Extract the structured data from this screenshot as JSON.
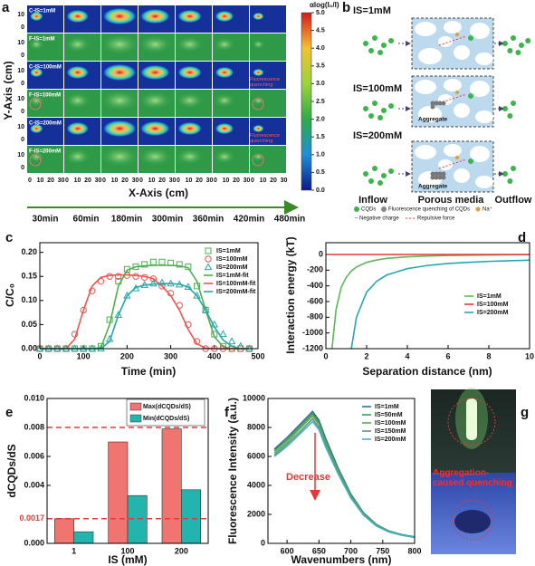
{
  "panel_a": {
    "panel_label": "a",
    "rows": [
      "C-IS=1mM",
      "F-IS=1mM",
      "C-IS=100mM",
      "F-IS=100mM",
      "C-IS=200mM",
      "F-IS=200mM"
    ],
    "y_tick_labels": [
      "10",
      "0"
    ],
    "x_tick_labels": [
      "0",
      "10",
      "20",
      "30"
    ],
    "y_label": "Y-Axis (cm)",
    "x_label": "X-Axis (cm)",
    "times": [
      "30min",
      "60min",
      "180min",
      "300min",
      "360min",
      "420min",
      "480min"
    ],
    "annotations": [
      "Fluorescence quenching",
      "Fluorescence quenching"
    ],
    "colorbar": {
      "label": "αlog(I₀/I)",
      "lim": [
        0,
        5
      ],
      "ticks": [
        {
          "value": 0,
          "label": "0.0"
        },
        0.5,
        {
          "value": 1,
          "label": "1.0"
        },
        1.5,
        {
          "value": 2,
          "label": "2.0"
        },
        2.5,
        {
          "value": 3,
          "label": "3.0"
        },
        3.5,
        {
          "value": 4,
          "label": "4.0"
        },
        4.5,
        {
          "value": 5,
          "label": "5.0"
        }
      ]
    }
  },
  "panel_b": {
    "panel_label": "b",
    "rows": [
      "IS=1mM",
      "IS=100mM",
      "IS=200mM"
    ],
    "aggregate_labels": [
      "Aggregate",
      "Aggregate"
    ],
    "stages": [
      "Inflow",
      "Porous media",
      "Outflow"
    ],
    "legend": [
      "CQDs",
      "Fluorescence quenching of CQDs",
      "Na⁺",
      "– Negative charge",
      "Repulsive force"
    ]
  },
  "panel_g": {
    "panel_label": "g",
    "caption": "Aggregation-caused quenching"
  },
  "chart_data": [
    {
      "panel_label": "c",
      "type": "line",
      "x_label": "Time (min)",
      "y_label": "C/C₀",
      "x": [
        0,
        20,
        40,
        60,
        80,
        100,
        120,
        140,
        160,
        180,
        200,
        220,
        240,
        260,
        280,
        300,
        320,
        340,
        360,
        380,
        400,
        420,
        440,
        460,
        480
      ],
      "series": [
        {
          "name": "IS=1mM",
          "color": "#4caf50",
          "marker": "square",
          "values": [
            0,
            0,
            0,
            0,
            0,
            0,
            0,
            0.005,
            0.06,
            0.14,
            0.165,
            0.17,
            0.175,
            0.18,
            0.18,
            0.178,
            0.175,
            0.17,
            0.13,
            0.08,
            0.03,
            0.005,
            0,
            0,
            0
          ]
        },
        {
          "name": "IS=100mM",
          "color": "#e8554e",
          "marker": "circle",
          "values": [
            0,
            0,
            0,
            0,
            0.03,
            0.08,
            0.12,
            0.14,
            0.15,
            0.15,
            0.152,
            0.15,
            0.148,
            0.145,
            0.13,
            0.115,
            0.09,
            0.05,
            0.015,
            0,
            0,
            0,
            0,
            0,
            0
          ]
        },
        {
          "name": "IS=200mM",
          "color": "#26a6a6",
          "marker": "triangle",
          "values": [
            0,
            0,
            0,
            0,
            0,
            0,
            0,
            0,
            0.02,
            0.07,
            0.11,
            0.125,
            0.132,
            0.135,
            0.137,
            0.135,
            0.133,
            0.128,
            0.11,
            0.08,
            0.05,
            0.03,
            0.015,
            0.005,
            0
          ]
        },
        {
          "name": "IS=1mM-fit",
          "color": "#4caf50",
          "values": [
            0,
            0,
            0,
            0,
            0,
            0,
            0,
            0.002,
            0.05,
            0.13,
            0.163,
            0.17,
            0.172,
            0.173,
            0.173,
            0.173,
            0.172,
            0.168,
            0.14,
            0.08,
            0.025,
            0.004,
            0,
            0,
            0
          ]
        },
        {
          "name": "IS=100mM-fit",
          "color": "#e8554e",
          "values": [
            0,
            0,
            0,
            0,
            0.02,
            0.08,
            0.13,
            0.148,
            0.152,
            0.153,
            0.153,
            0.152,
            0.15,
            0.145,
            0.13,
            0.11,
            0.08,
            0.04,
            0.01,
            0.001,
            0,
            0,
            0,
            0,
            0
          ]
        },
        {
          "name": "IS=200mM-fit",
          "color": "#26a6a6",
          "values": [
            0,
            0,
            0,
            0,
            0,
            0,
            0,
            0,
            0.015,
            0.07,
            0.11,
            0.127,
            0.132,
            0.134,
            0.135,
            0.135,
            0.134,
            0.128,
            0.11,
            0.08,
            0.045,
            0.018,
            0.005,
            0,
            0
          ]
        }
      ],
      "xlim": [
        0,
        500
      ],
      "xticks": [
        0,
        100,
        200,
        300,
        400,
        500
      ],
      "ylim": [
        0,
        0.22
      ],
      "yticks": [
        {
          "value": 0,
          "label": "0.00"
        },
        0.05,
        {
          "value": 0.1,
          "label": "0.10"
        },
        0.15,
        {
          "value": 0.2,
          "label": "0.20"
        }
      ],
      "legend": "upper right"
    },
    {
      "panel_label": "d",
      "type": "line",
      "x_label": "Separation distance (nm)",
      "y_label": "Interaction energy (kT)",
      "x": [
        0,
        0.3,
        0.5,
        0.75,
        1,
        1.25,
        1.5,
        2,
        2.5,
        3,
        4,
        5,
        6,
        7,
        8,
        9,
        10
      ],
      "series": [
        {
          "name": "IS=1mM",
          "color": "#5cb85c",
          "values": [
            null,
            -1200,
            -700,
            -420,
            -290,
            -210,
            -160,
            -100,
            -70,
            -50,
            -30,
            -20,
            -13,
            -9,
            -6,
            -4,
            -3
          ]
        },
        {
          "name": "IS=100mM",
          "color": "#e53935",
          "values": [
            0,
            0,
            0,
            0,
            0,
            0,
            0,
            0,
            0,
            0,
            0,
            0,
            0,
            0,
            0,
            0,
            0
          ]
        },
        {
          "name": "IS=200mM",
          "color": "#26a6b0",
          "values": [
            null,
            null,
            null,
            null,
            null,
            -1200,
            -800,
            -480,
            -340,
            -260,
            -180,
            -140,
            -115,
            -100,
            -88,
            -80,
            -72
          ]
        }
      ],
      "xlim": [
        0,
        10
      ],
      "xticks": [
        0,
        2,
        4,
        6,
        8,
        10
      ],
      "ylim": [
        -1200,
        150
      ],
      "yticks": [
        -1200,
        -1000,
        -800,
        -600,
        -400,
        -200,
        0
      ],
      "legend": "center right"
    },
    {
      "panel_label": "e",
      "type": "bar",
      "x_label": "IS (mM)",
      "y_label": "dCQDs/dS",
      "categories": [
        "1",
        "100",
        "200"
      ],
      "series": [
        {
          "name": "Max(dCQDs/dS)",
          "color": "#f07470",
          "values": [
            0.0017,
            0.007,
            0.0079
          ]
        },
        {
          "name": "Min(dCQDs/dS)",
          "color": "#23b4ae",
          "values": [
            0.0008,
            0.0033,
            0.0037
          ]
        }
      ],
      "reference_lines": [
        {
          "value": 0.008,
          "color": "#e53935"
        },
        {
          "value": 0.0017,
          "label": "0.0017",
          "color": "#e53935"
        }
      ],
      "ylim": [
        0,
        0.01
      ],
      "yticks": [
        {
          "value": 0,
          "label": "0.000"
        },
        0.004,
        0.006,
        0.008,
        {
          "value": 0.01,
          "label": "0.010"
        }
      ],
      "legend": "upper right"
    },
    {
      "panel_label": "f",
      "type": "line",
      "x_label": "Wavenumbers (nm)",
      "y_label": "Fluorescence Intensity (a.u.)",
      "annotation": "Decrease",
      "x": [
        580,
        600,
        620,
        640,
        650,
        660,
        680,
        700,
        720,
        740,
        760,
        780,
        800
      ],
      "series": [
        {
          "name": "IS=1mM",
          "color": "#2f6f8f",
          "values": [
            6500,
            7300,
            8200,
            9100,
            8500,
            7300,
            5200,
            3400,
            2100,
            1300,
            850,
            600,
            450
          ]
        },
        {
          "name": "IS=50mM",
          "color": "#3c9a5c",
          "values": [
            6400,
            7150,
            8050,
            8950,
            8350,
            7150,
            5100,
            3330,
            2060,
            1270,
            830,
            590,
            440
          ]
        },
        {
          "name": "IS=100mM",
          "color": "#55b04f",
          "values": [
            6250,
            7000,
            7900,
            8800,
            8200,
            7000,
            5000,
            3260,
            2020,
            1250,
            820,
            580,
            430
          ]
        },
        {
          "name": "IS=150mM",
          "color": "#6b8f7e",
          "values": [
            6100,
            6850,
            7700,
            8600,
            8000,
            6850,
            4900,
            3200,
            1980,
            1220,
            800,
            570,
            420
          ]
        },
        {
          "name": "IS=200mM",
          "color": "#3fb3c6",
          "values": [
            6000,
            6700,
            7550,
            8400,
            7850,
            6700,
            4800,
            3130,
            1940,
            1200,
            780,
            560,
            410
          ]
        }
      ],
      "xlim": [
        570,
        800
      ],
      "xticks": [
        600,
        650,
        700,
        750,
        800
      ],
      "ylim": [
        0,
        10000
      ],
      "yticks": [
        0,
        2000,
        4000,
        6000,
        8000,
        10000
      ],
      "legend": "upper right"
    }
  ]
}
